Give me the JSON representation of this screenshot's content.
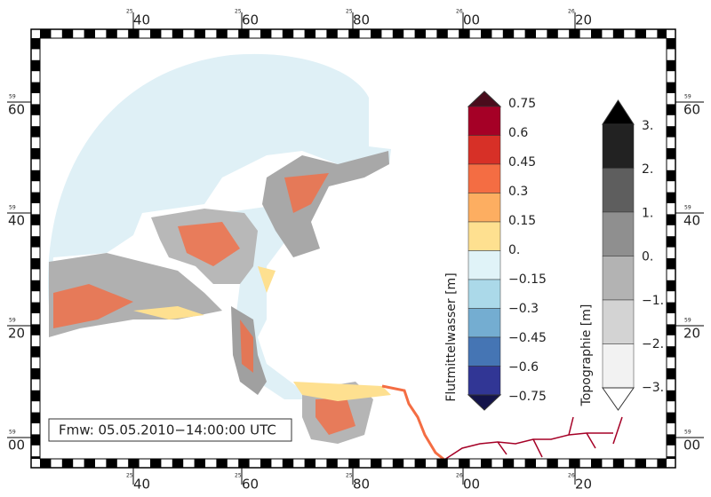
{
  "frame": {
    "top_labels": [
      "40",
      "60",
      "80",
      "00",
      "20"
    ],
    "top_small": [
      "25",
      "25",
      "25",
      "26",
      "26"
    ],
    "side_labels": [
      "60",
      "40",
      "20",
      "00"
    ],
    "side_small": [
      "59",
      "59",
      "59",
      "59"
    ]
  },
  "colorbar_water": {
    "title": "Flutmittelwasser [m]",
    "labels": [
      "0.75",
      "0.6",
      "0.45",
      "0.3",
      "0.15",
      "0.",
      "−0.15",
      "−0.3",
      "−0.45",
      "−0.6",
      "−0.75"
    ],
    "over_color": "#4a0c1c",
    "colors": [
      "#a50026",
      "#d73027",
      "#f46d43",
      "#fdae61",
      "#fee090",
      "#e0f3f8",
      "#abd9e9",
      "#74add1",
      "#4575b4",
      "#313695"
    ],
    "under_color": "#14144a"
  },
  "colorbar_topo": {
    "title": "Topographie [m]",
    "labels": [
      "3.",
      "2.",
      "1.",
      "0.",
      "−1.",
      "−2.",
      "−3."
    ],
    "over_color": "#000000",
    "colors": [
      "#222222",
      "#5e5e5e",
      "#8f8f8f",
      "#b3b3b3",
      "#d3d3d3",
      "#f2f2f2"
    ],
    "under_color": "#ffffff"
  },
  "timestamp": "Fmw: 05.05.2010−14:00:00 UTC"
}
